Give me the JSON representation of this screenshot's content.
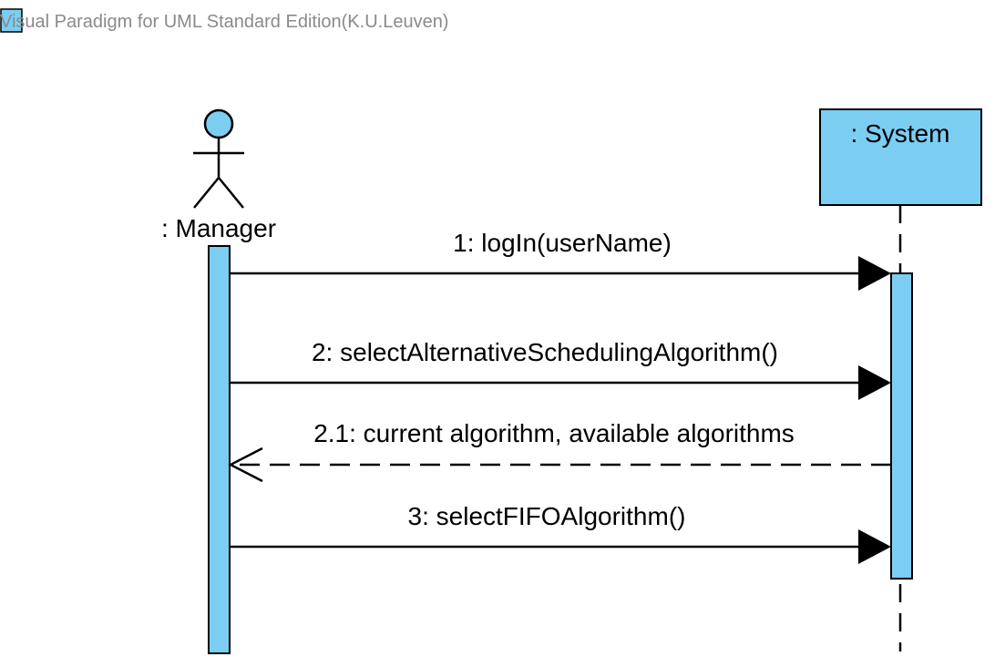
{
  "watermark": {
    "text": "Visual Paradigm for UML Standard Edition(K.U.Leuven)"
  },
  "colors": {
    "fill": "#7ccdf2",
    "stroke": "#000000",
    "watermark": "#8a8a8a"
  },
  "lifelines": {
    "manager": {
      "kind": "actor",
      "label": ": Manager"
    },
    "system": {
      "kind": "object",
      "label": ": System"
    }
  },
  "messages": [
    {
      "label": "1: logIn(userName)",
      "from": "manager",
      "to": "system",
      "type": "synchronous"
    },
    {
      "label": "2: selectAlternativeSchedulingAlgorithm()",
      "from": "manager",
      "to": "system",
      "type": "synchronous"
    },
    {
      "label": "2.1: current algorithm, available algorithms",
      "from": "system",
      "to": "manager",
      "type": "return"
    },
    {
      "label": "3: selectFIFOAlgorithm()",
      "from": "manager",
      "to": "system",
      "type": "synchronous"
    }
  ]
}
